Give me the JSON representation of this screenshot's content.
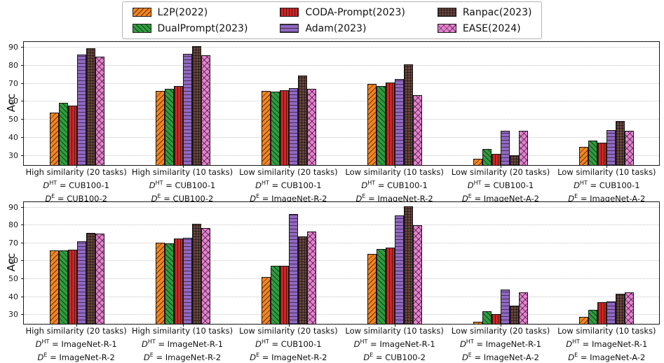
{
  "legend": {
    "items": [
      {
        "label": "L2P(2022)",
        "color": "#f5841e",
        "hatch": "/"
      },
      {
        "label": "DualPrompt(2023)",
        "color": "#2e9e3e",
        "hatch": "\\"
      },
      {
        "label": "CODA-Prompt(2023)",
        "color": "#cf2626",
        "hatch": "|"
      },
      {
        "label": "Adam(2023)",
        "color": "#9168c2",
        "hatch": "-"
      },
      {
        "label": "Ranpac(2023)",
        "color": "#6a453c",
        "hatch": "+"
      },
      {
        "label": "EASE(2024)",
        "color": "#e980d2",
        "hatch": "x"
      }
    ]
  },
  "chart_data": [
    {
      "type": "bar",
      "title": "",
      "xlabel": "",
      "ylabel": "Acc",
      "ylim": [
        25,
        93
      ],
      "yticks": [
        30,
        40,
        50,
        60,
        70,
        80,
        90
      ],
      "grid": true,
      "legend_position": "top-center",
      "categories": [
        {
          "name": "High similarity (20 tasks)",
          "dht": "D^{HT} = CUB100-1",
          "de": "D^{E} = CUB100-2"
        },
        {
          "name": "High similarity (10 tasks)",
          "dht": "D^{HT} = CUB100-1",
          "de": "D^{E} = CUB100-2"
        },
        {
          "name": "Low similarity (20 tasks)",
          "dht": "D^{HT} = CUB100-1",
          "de": "D^{E} = ImageNet-R-2"
        },
        {
          "name": "Low similarity (10 tasks)",
          "dht": "D^{HT} = CUB100-1",
          "de": "D^{E} = ImageNet-R-2"
        },
        {
          "name": "Low similarity (20 tasks)",
          "dht": "D^{HT} = CUB100-1",
          "de": "D^{E} = ImageNet-A-2"
        },
        {
          "name": "Low similarity (10 tasks)",
          "dht": "D^{HT} = CUB100-1",
          "de": "D^{E} = ImageNet-A-2"
        }
      ],
      "series": [
        {
          "name": "L2P(2022)",
          "values": [
            54,
            66,
            66,
            70,
            28.5,
            35
          ]
        },
        {
          "name": "DualPrompt(2023)",
          "values": [
            59.5,
            67,
            65.5,
            68.5,
            34,
            38.5
          ]
        },
        {
          "name": "CODA-Prompt(2023)",
          "values": [
            58,
            68.5,
            66.5,
            70.5,
            31,
            37.5
          ]
        },
        {
          "name": "Adam(2023)",
          "values": [
            86,
            86.5,
            67.5,
            72.5,
            44,
            44.5
          ]
        },
        {
          "name": "Ranpac(2023)",
          "values": [
            89.5,
            90.5,
            74.5,
            80.5,
            30.5,
            49.5
          ]
        },
        {
          "name": "EASE(2024)",
          "values": [
            85,
            85.5,
            67,
            63.5,
            44,
            44
          ]
        }
      ]
    },
    {
      "type": "bar",
      "title": "",
      "xlabel": "",
      "ylabel": "Acc",
      "ylim": [
        25,
        93
      ],
      "yticks": [
        30,
        40,
        50,
        60,
        70,
        80,
        90
      ],
      "grid": true,
      "categories": [
        {
          "name": "High similarity (20 tasks)",
          "dht": "D^{HT} = ImageNet-R-1",
          "de": "D^{E} = ImageNet-R-2"
        },
        {
          "name": "High similarity (10 tasks)",
          "dht": "D^{HT} = ImageNet-R-1",
          "de": "D^{E} = ImageNet-R-2"
        },
        {
          "name": "Low similarity (20 tasks)",
          "dht": "D^{HT} = CUB100-1",
          "de": "D^{E} = ImageNet-R-2"
        },
        {
          "name": "Low similarity (10 tasks)",
          "dht": "D^{HT} = ImageNet-R-1",
          "de": "D^{E} = CUB100-2"
        },
        {
          "name": "Low similarity (20 tasks)",
          "dht": "D^{HT} = ImageNet-R-1",
          "de": "D^{E} = ImageNet-A-2"
        },
        {
          "name": "Low similarity (10 tasks)",
          "dht": "D^{HT} = ImageNet-R-1",
          "de": "D^{E} = ImageNet-A-2"
        }
      ],
      "series": [
        {
          "name": "L2P(2022)",
          "values": [
            66,
            70.5,
            51,
            64,
            26,
            29
          ]
        },
        {
          "name": "DualPrompt(2023)",
          "values": [
            66,
            70,
            57.5,
            67,
            32,
            33
          ]
        },
        {
          "name": "CODA-Prompt(2023)",
          "values": [
            66.5,
            72.5,
            57.5,
            67.5,
            30.5,
            37
          ]
        },
        {
          "name": "Adam(2023)",
          "values": [
            71,
            73,
            86.5,
            85.5,
            44,
            37.5
          ]
        },
        {
          "name": "Ranpac(2023)",
          "values": [
            76,
            81,
            74,
            90.5,
            35,
            42
          ]
        },
        {
          "name": "EASE(2024)",
          "values": [
            75.5,
            78.5,
            76.5,
            80,
            42.5,
            42.5
          ]
        }
      ]
    }
  ]
}
